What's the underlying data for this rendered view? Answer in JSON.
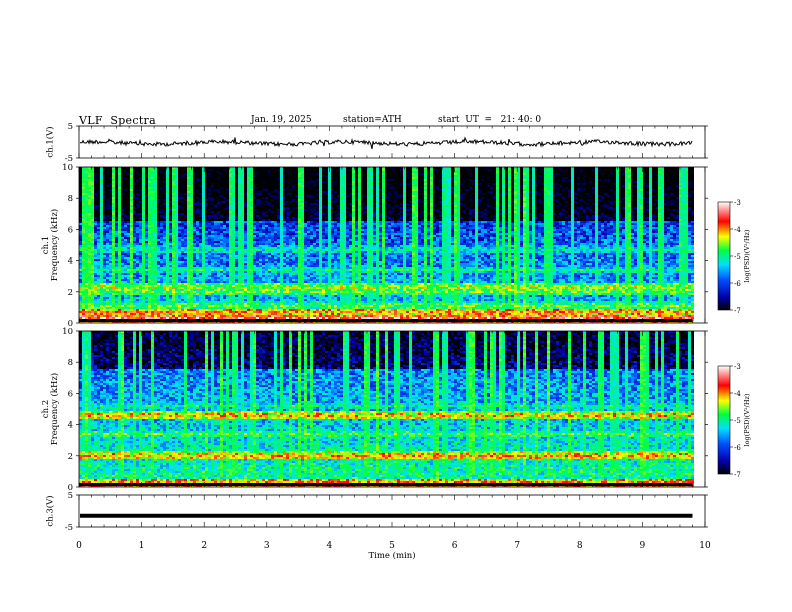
{
  "header": {
    "title": "VLF  Spectra",
    "date": "Jan. 19, 2025",
    "station": "station=ATH",
    "start_ut": "start  UT  =   21: 40: 0"
  },
  "chart_data": [
    {
      "type": "line",
      "panel": "ch1-waveform",
      "ylabel": "ch.1(V)",
      "yticks": [
        "5",
        "-5"
      ],
      "ylim": [
        -5,
        5
      ],
      "xlim": [
        0,
        9.8
      ],
      "baseline": 0,
      "description_level": "noisy trace around 0 V"
    },
    {
      "type": "heatmap",
      "panel": "ch1-spectrogram",
      "ylabel": "ch.1\nFrequency (kHz)",
      "ylabel_lines": [
        "ch.1",
        "Frequency (kHz)"
      ],
      "yticks": [
        "0",
        "2",
        "4",
        "6",
        "8",
        "10"
      ],
      "ylim": [
        0,
        10
      ],
      "xlim": [
        0,
        9.8
      ],
      "colorbar": {
        "label": "log(PSD)(V²/Hz)",
        "ticks": [
          "-3",
          "-4",
          "-5",
          "-6",
          "-7"
        ],
        "range": [
          -7,
          -3
        ]
      },
      "bands_khz": [
        {
          "f": 0.3,
          "level": -3.4
        },
        {
          "f": 0.7,
          "level": -3.8
        },
        {
          "f": 1.1,
          "level": -4.6
        },
        {
          "f": 2.0,
          "level": -4.6
        },
        {
          "f": 2.3,
          "level": -4.3
        },
        {
          "f": 3.4,
          "level": -5.0
        },
        {
          "f": 4.7,
          "level": -5.1
        }
      ]
    },
    {
      "type": "heatmap",
      "panel": "ch2-spectrogram",
      "ylabel": "ch.2\nFrequency (kHz)",
      "ylabel_lines": [
        "ch.2",
        "Frequency (kHz)"
      ],
      "yticks": [
        "0",
        "2",
        "4",
        "6",
        "8",
        "10"
      ],
      "ylim": [
        0,
        10
      ],
      "xlim": [
        0,
        9.8
      ],
      "colorbar": {
        "label": "log(PSD)(V²/Hz)",
        "ticks": [
          "-3",
          "-4",
          "-5",
          "-6",
          "-7"
        ],
        "range": [
          -7,
          -3
        ]
      },
      "bands_khz": [
        {
          "f": 0.5,
          "level": -4.8
        },
        {
          "f": 2.0,
          "level": -3.9
        },
        {
          "f": 3.4,
          "level": -4.7
        },
        {
          "f": 4.6,
          "level": -4.0
        },
        {
          "f": 5.2,
          "level": -5.0
        }
      ]
    },
    {
      "type": "line",
      "panel": "ch3-waveform",
      "ylabel": "ch.3(V)",
      "yticks": [
        "5",
        "-5"
      ],
      "ylim": [
        -5,
        5
      ],
      "xlim": [
        0,
        9.8
      ],
      "baseline": -1.5
    }
  ],
  "xaxis": {
    "label": "Time  (min)",
    "ticks": [
      "0",
      "1",
      "2",
      "3",
      "4",
      "5",
      "6",
      "7",
      "8",
      "9",
      "10"
    ],
    "range": [
      0,
      10
    ]
  },
  "colors": {
    "colormap": [
      "#000000",
      "#0000aa",
      "#0044ff",
      "#00ddff",
      "#00ff00",
      "#ffff00",
      "#ff0000",
      "#ffffff"
    ]
  }
}
